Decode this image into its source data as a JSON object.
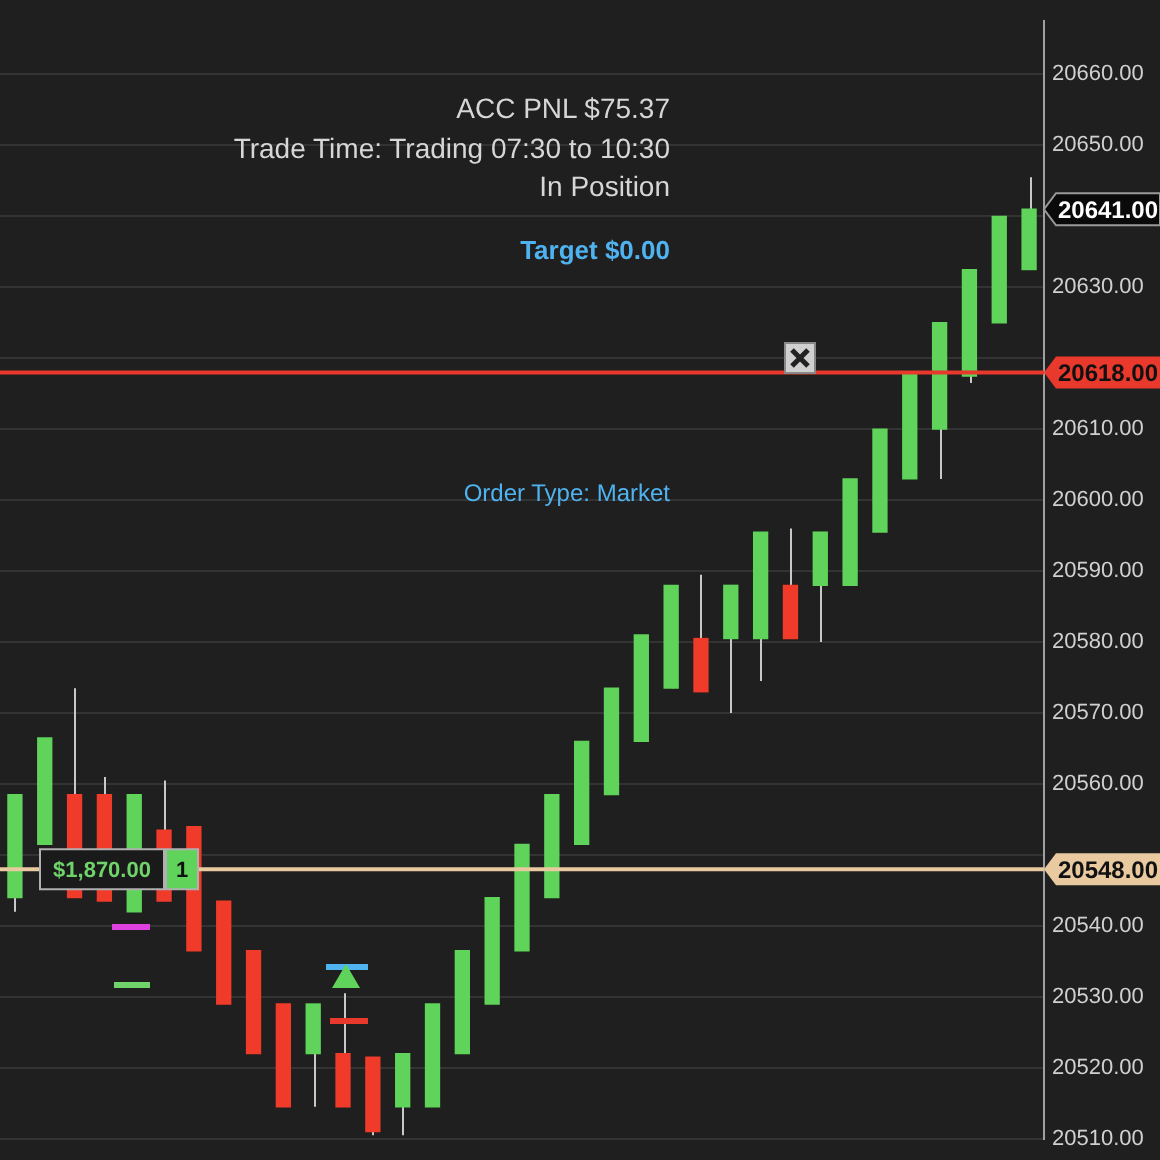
{
  "chart_data": {
    "type": "candlestick",
    "categories": [
      null,
      null,
      null,
      null,
      null,
      null,
      null,
      null,
      null,
      null,
      null,
      null,
      null,
      null,
      null,
      null,
      null,
      null,
      null,
      null,
      null,
      null,
      null,
      null,
      null,
      null,
      null,
      null,
      null,
      null,
      null,
      null,
      null,
      null,
      null
    ],
    "ohlc": [
      [
        20544,
        20558.5,
        20542,
        20558.5
      ],
      [
        20551.5,
        20566.5,
        20551.5,
        20566.5
      ],
      [
        20558.5,
        20573.5,
        20544,
        20544
      ],
      [
        20558.5,
        20561,
        20543.5,
        20543.5
      ],
      [
        20542,
        20558.5,
        20542,
        20558.5
      ],
      [
        20553.5,
        20560.5,
        20543.5,
        20543.5
      ],
      [
        20554,
        20554,
        20536.5,
        20536.5
      ],
      [
        20543.5,
        20543.5,
        20529,
        20529
      ],
      [
        20536.5,
        20536.5,
        20522,
        20522
      ],
      [
        20529,
        20529,
        20514.5,
        20514.5
      ],
      [
        20522,
        20529,
        20514.5,
        20529
      ],
      [
        20522,
        20530.5,
        20514.5,
        20514.5
      ],
      [
        20521.5,
        20521.5,
        20510.5,
        20511
      ],
      [
        20514.5,
        20522,
        20510.5,
        20522
      ],
      [
        20514.5,
        20529,
        20514.5,
        20529
      ],
      [
        20522,
        20536.5,
        20522,
        20536.5
      ],
      [
        20529,
        20544,
        20529,
        20544
      ],
      [
        20536.5,
        20551.5,
        20536.5,
        20551.5
      ],
      [
        20544,
        20558.5,
        20544,
        20558.5
      ],
      [
        20551.5,
        20566,
        20551.5,
        20566
      ],
      [
        20558.5,
        20573.5,
        20558.5,
        20573.5
      ],
      [
        20566,
        20581,
        20566,
        20581
      ],
      [
        20573.5,
        20588,
        20573.5,
        20588
      ],
      [
        20580.5,
        20589.5,
        20573,
        20573
      ],
      [
        20580.5,
        20588,
        20570,
        20588
      ],
      [
        20580.5,
        20595.5,
        20574.5,
        20595.5
      ],
      [
        20588,
        20596,
        20580.5,
        20580.5
      ],
      [
        20588,
        20595.5,
        20580,
        20595.5
      ],
      [
        20588,
        20603,
        20588,
        20603
      ],
      [
        20595.5,
        20610,
        20595.5,
        20610
      ],
      [
        20603,
        20618,
        20603,
        20618
      ],
      [
        20610,
        20625,
        20603,
        20625
      ],
      [
        20617.5,
        20632.5,
        20616.5,
        20632.5
      ],
      [
        20625,
        20640,
        20625,
        20640
      ],
      [
        20632.5,
        20645.5,
        20632.5,
        20641
      ]
    ],
    "colors": [
      "#5fd35a",
      "#5fd35a",
      "#f03a2a",
      "#f03a2a",
      "#5fd35a",
      "#f03a2a",
      "#f03a2a",
      "#f03a2a",
      "#f03a2a",
      "#f03a2a",
      "#5fd35a",
      "#f03a2a",
      "#f03a2a",
      "#5fd35a",
      "#5fd35a",
      "#5fd35a",
      "#5fd35a",
      "#5fd35a",
      "#5fd35a",
      "#5fd35a",
      "#5fd35a",
      "#5fd35a",
      "#5fd35a",
      "#f03a2a",
      "#5fd35a",
      "#5fd35a",
      "#f03a2a",
      "#5fd35a",
      "#5fd35a",
      "#5fd35a",
      "#5fd35a",
      "#5fd35a",
      "#5fd35a",
      "#5fd35a",
      "#5fd35a"
    ],
    "ylim": [
      20510,
      20667.5
    ],
    "yticks": [
      {
        "value": 20510,
        "label": "20510.00"
      },
      {
        "value": 20520,
        "label": "20520.00"
      },
      {
        "value": 20530,
        "label": "20530.00"
      },
      {
        "value": 20540,
        "label": "20540.00"
      },
      {
        "value": 20550,
        "label": null
      },
      {
        "value": 20560,
        "label": "20560.00"
      },
      {
        "value": 20570,
        "label": "20570.00"
      },
      {
        "value": 20580,
        "label": "20580.00"
      },
      {
        "value": 20590,
        "label": "20590.00"
      },
      {
        "value": 20600,
        "label": "20600.00"
      },
      {
        "value": 20610,
        "label": "20610.00"
      },
      {
        "value": 20620,
        "label": null
      },
      {
        "value": 20630,
        "label": "20630.00"
      },
      {
        "value": 20640,
        "label": null
      },
      {
        "value": 20650,
        "label": "20650.00"
      },
      {
        "value": 20660,
        "label": "20660.00"
      }
    ],
    "grid": "y",
    "legend": false,
    "ref_lines": [
      {
        "axis": "y",
        "value": 20618,
        "label": "20618.00",
        "color": "#e8392c"
      },
      {
        "axis": "y",
        "value": 20548,
        "label": "20548.00",
        "color": "#e8c9a0"
      }
    ],
    "annotations": [
      "ACC PNL $75.37",
      "Trade Time: Trading 07:30 to 10:30",
      "In Position",
      "Target $0.00",
      "Order Type: Market",
      "20641.00",
      {
        "text": "$1,870.00",
        "y": 20548
      },
      {
        "text": "1",
        "y": 20548
      }
    ]
  }
}
